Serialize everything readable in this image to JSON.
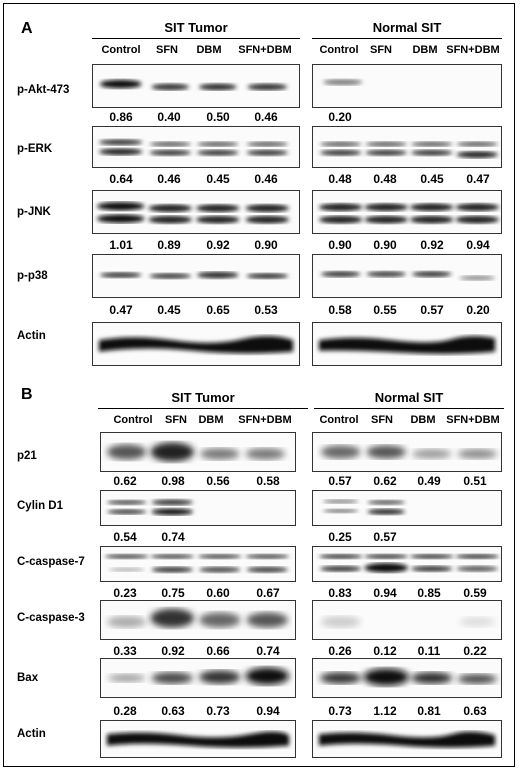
{
  "panels": [
    {
      "letter": "A",
      "groups": [
        {
          "title": "SIT Tumor",
          "columns": [
            "Control",
            "SFN",
            "DBM",
            "SFN+DBM"
          ]
        },
        {
          "title": "Normal SIT",
          "columns": [
            "Control",
            "SFN",
            "DBM",
            "SFN+DBM"
          ]
        }
      ],
      "rows": [
        {
          "label": "p-Akt-473",
          "values": [
            [
              "0.86",
              "0.40",
              "0.50",
              "0.46"
            ],
            [
              "0.20",
              "",
              "",
              ""
            ]
          ]
        },
        {
          "label": "p-ERK",
          "values": [
            [
              "0.64",
              "0.46",
              "0.45",
              "0.46"
            ],
            [
              "0.48",
              "0.48",
              "0.45",
              "0.47"
            ]
          ]
        },
        {
          "label": "p-JNK",
          "values": [
            [
              "1.01",
              "0.89",
              "0.92",
              "0.90"
            ],
            [
              "0.90",
              "0.90",
              "0.92",
              "0.94"
            ]
          ]
        },
        {
          "label": "p-p38",
          "values": [
            [
              "0.47",
              "0.45",
              "0.65",
              "0.53"
            ],
            [
              "0.58",
              "0.55",
              "0.57",
              "0.20"
            ]
          ]
        },
        {
          "label": "Actin",
          "values": [
            [
              "",
              "",
              "",
              ""
            ],
            [
              "",
              "",
              "",
              ""
            ]
          ]
        }
      ]
    },
    {
      "letter": "B",
      "groups": [
        {
          "title": "SIT Tumor",
          "columns": [
            "Control",
            "SFN",
            "DBM",
            "SFN+DBM"
          ]
        },
        {
          "title": "Normal SIT",
          "columns": [
            "Control",
            "SFN",
            "DBM",
            "SFN+DBM"
          ]
        }
      ],
      "rows": [
        {
          "label": "p21",
          "values": [
            [
              "0.62",
              "0.98",
              "0.56",
              "0.58"
            ],
            [
              "0.57",
              "0.62",
              "0.49",
              "0.51"
            ]
          ]
        },
        {
          "label": "Cylin D1",
          "values": [
            [
              "0.54",
              "0.74",
              "",
              ""
            ],
            [
              "0.25",
              "0.57",
              "",
              ""
            ]
          ]
        },
        {
          "label": "C-caspase-7",
          "values": [
            [
              "0.23",
              "0.75",
              "0.60",
              "0.67"
            ],
            [
              "0.83",
              "0.94",
              "0.85",
              "0.59"
            ]
          ]
        },
        {
          "label": "C-caspase-3",
          "values": [
            [
              "0.33",
              "0.92",
              "0.66",
              "0.74"
            ],
            [
              "0.26",
              "0.12",
              "0.11",
              "0.22"
            ]
          ]
        },
        {
          "label": "Bax",
          "values": [
            [
              "0.28",
              "0.63",
              "0.73",
              "0.94"
            ],
            [
              "0.73",
              "1.12",
              "0.81",
              "0.63"
            ]
          ]
        },
        {
          "label": "Actin",
          "values": [
            [
              "",
              "",
              "",
              ""
            ],
            [
              "",
              "",
              "",
              ""
            ]
          ]
        }
      ]
    }
  ]
}
